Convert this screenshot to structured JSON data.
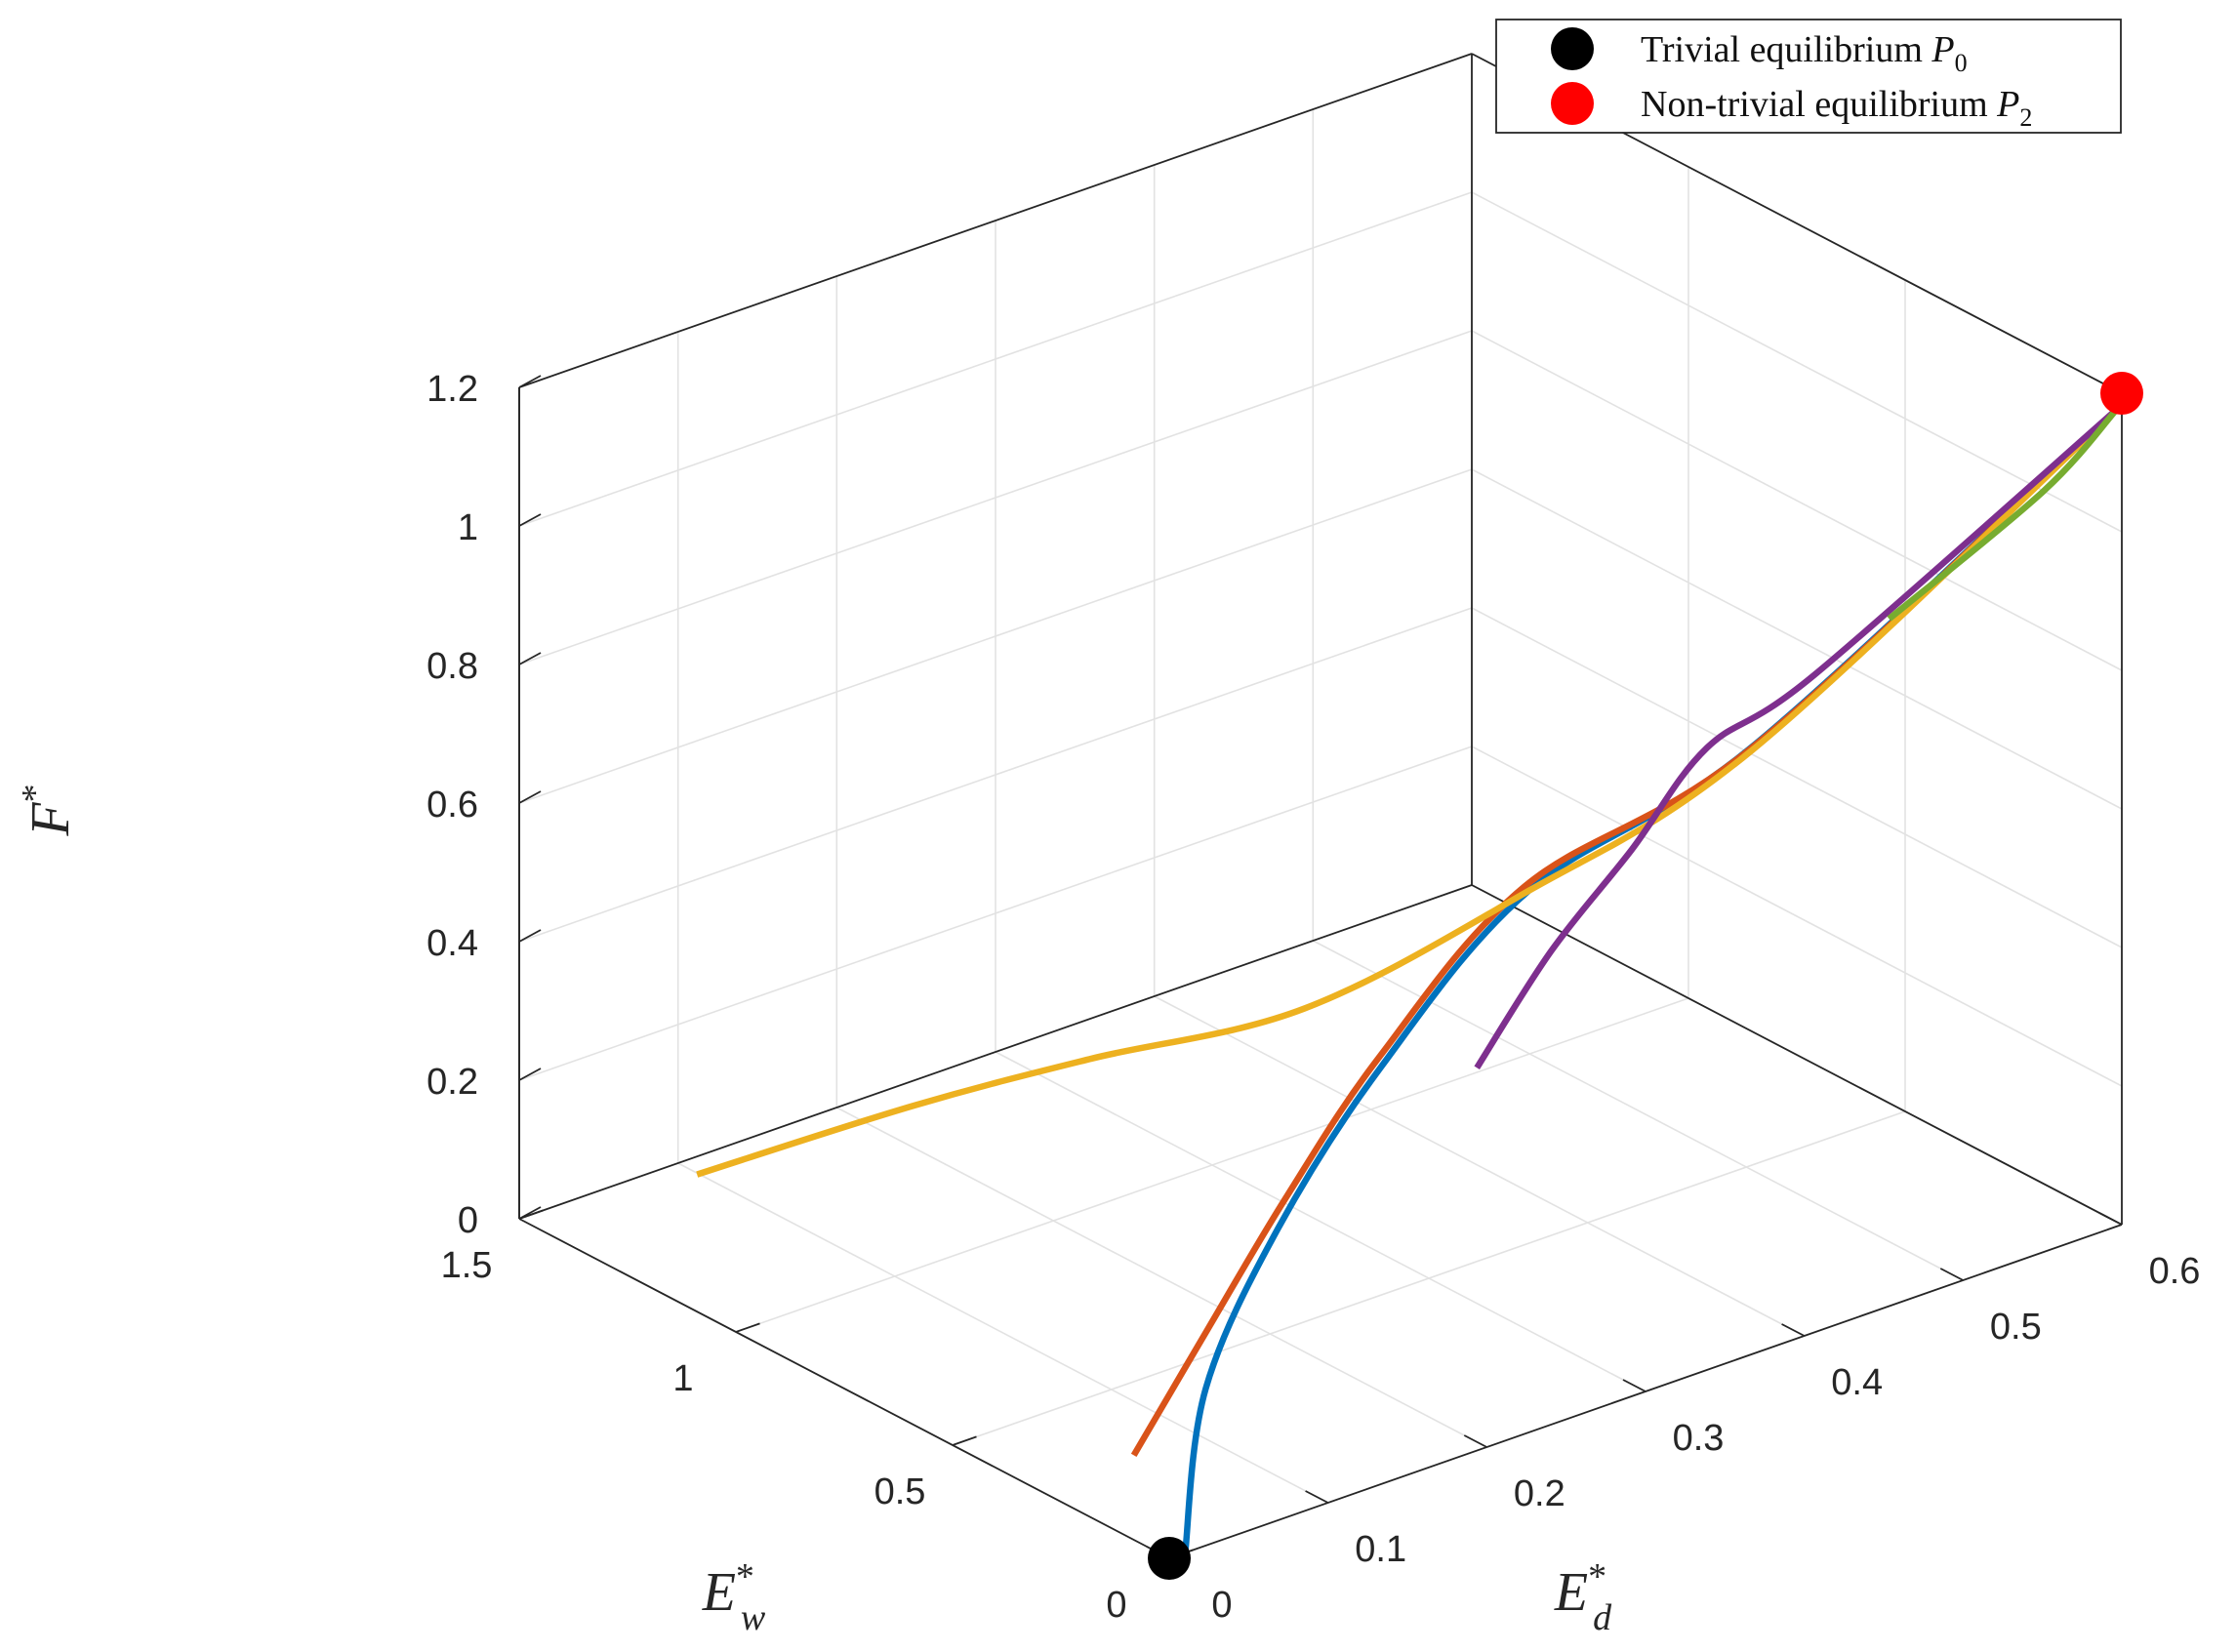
{
  "chart_data": {
    "type": "line",
    "projection": "3d",
    "axes": {
      "x": {
        "label": "E",
        "sub": "w",
        "sup": "*",
        "range": [
          0,
          1.5
        ],
        "ticks": [
          0,
          0.5,
          1,
          1.5
        ],
        "tick_labels": [
          "0",
          "0.5",
          "1",
          "1.5"
        ]
      },
      "y": {
        "label": "E",
        "sub": "d",
        "sup": "*",
        "range": [
          0,
          0.6
        ],
        "ticks": [
          0,
          0.1,
          0.2,
          0.3,
          0.4,
          0.5,
          0.6
        ],
        "tick_labels": [
          "0",
          "0.1",
          "0.2",
          "0.3",
          "0.4",
          "0.5",
          "0.6"
        ]
      },
      "z": {
        "label": "F",
        "sup": "*",
        "range": [
          0,
          1.2
        ],
        "ticks": [
          0,
          0.2,
          0.4,
          0.6,
          0.8,
          1,
          1.2
        ],
        "tick_labels": [
          "0",
          "0.2",
          "0.4",
          "0.6",
          "0.8",
          "1",
          "1.2"
        ]
      }
    },
    "grid": true,
    "legend": {
      "placement": "top-right",
      "entries": [
        {
          "marker_color": "#000000",
          "text": "Trivial equilibrium ",
          "math": "P",
          "sub": "0"
        },
        {
          "marker_color": "#ff0000",
          "text": "Non-trivial equilibrium ",
          "math": "P",
          "sub": "2"
        }
      ]
    },
    "equilibria": [
      {
        "name": "P0",
        "color": "#000000",
        "point": [
          0,
          0,
          0
        ]
      },
      {
        "name": "P2",
        "color": "#ff0000",
        "point": [
          0,
          0.6,
          1.2
        ]
      }
    ],
    "series": [
      {
        "color": "#0072bd",
        "points": [
          [
            0,
            0.01,
            0
          ],
          [
            0.33,
            0.113,
            0.046
          ],
          [
            0.577,
            0.226,
            0.106
          ],
          [
            0.734,
            0.334,
            0.202
          ],
          [
            0.749,
            0.431,
            0.373
          ],
          [
            0.56,
            0.52,
            0.571
          ],
          [
            0.02,
            0.602,
            1.168
          ]
        ]
      },
      {
        "color": "#d95319",
        "points": [
          [
            0.1,
            0.005,
            0.112
          ],
          [
            0.322,
            0.112,
            0.135
          ],
          [
            0.559,
            0.227,
            0.159
          ],
          [
            0.74,
            0.335,
            0.215
          ],
          [
            0.755,
            0.43,
            0.378
          ],
          [
            0.56,
            0.52,
            0.57
          ],
          [
            0.02,
            0.602,
            1.168
          ]
        ]
      },
      {
        "color": "#edb120",
        "points": [
          [
            1.163,
            0.02,
            0.158
          ],
          [
            1.08,
            0.134,
            0.193
          ],
          [
            1.014,
            0.228,
            0.207
          ],
          [
            0.898,
            0.33,
            0.235
          ],
          [
            0.757,
            0.43,
            0.367
          ],
          [
            0.56,
            0.52,
            0.566
          ],
          [
            0.02,
            0.602,
            1.168
          ]
        ]
      },
      {
        "color": "#7e2f8e",
        "points": [
          [
            0.107,
            0.223,
            0.494
          ],
          [
            0.342,
            0.334,
            0.497
          ],
          [
            0.516,
            0.432,
            0.507
          ],
          [
            0.661,
            0.519,
            0.537
          ],
          [
            0.599,
            0.57,
            0.622
          ],
          [
            0.02,
            0.602,
            1.168
          ]
        ]
      },
      {
        "color": "#77ac30",
        "points": [
          [
            0.35,
            0.549,
            0.801
          ],
          [
            0.141,
            0.589,
            1.021
          ],
          [
            0.02,
            0.602,
            1.168
          ]
        ]
      }
    ]
  }
}
